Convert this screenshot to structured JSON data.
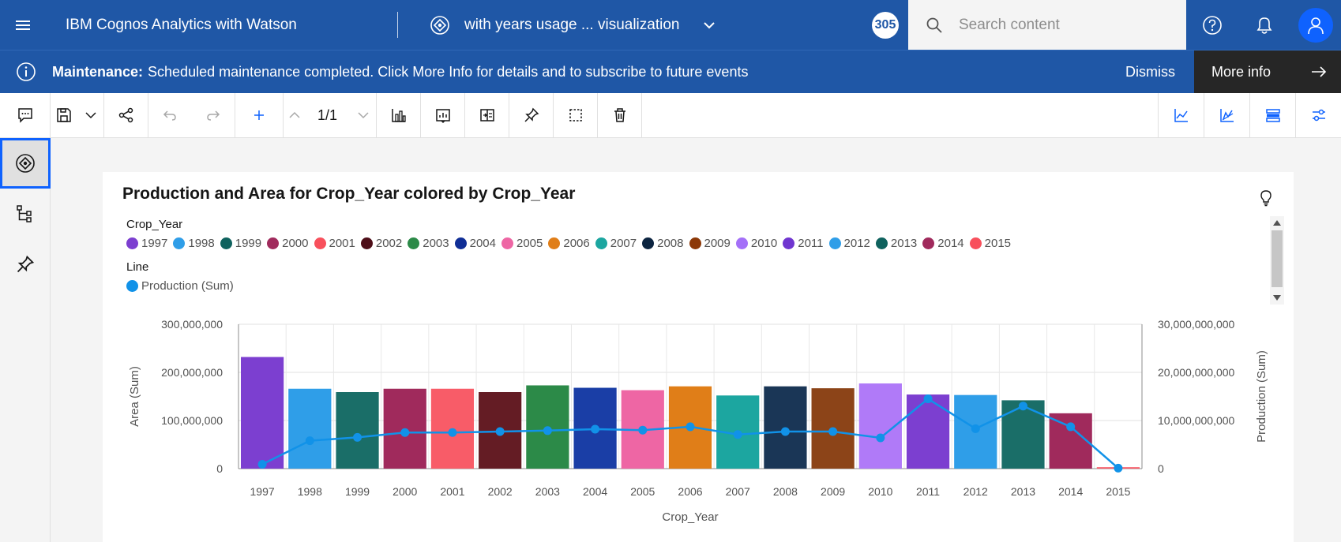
{
  "topbar": {
    "app_title": "IBM Cognos Analytics with Watson",
    "breadcrumb": "with years usage ... visualization",
    "badge_count": "305",
    "search_placeholder": "Search content"
  },
  "banner": {
    "label": "Maintenance:",
    "message": "Scheduled maintenance completed. Click More Info for details and to subscribe to future events",
    "dismiss": "Dismiss",
    "more_info": "More info"
  },
  "toolbar": {
    "page_indicator": "1/1"
  },
  "colors": {
    "ibm_blue": "#1f57a6",
    "line": "#1192e8"
  },
  "legend": {
    "color_title": "Crop_Year",
    "line_title": "Line",
    "line_item": "Production (Sum)"
  },
  "chart_data": {
    "type": "bar",
    "title": "Production and Area for Crop_Year colored by Crop_Year",
    "xlabel": "Crop_Year",
    "ylabel": "Area (Sum)",
    "y2label": "Production (Sum)",
    "ylim": [
      0,
      300000000
    ],
    "y2lim": [
      0,
      30000000000
    ],
    "yticks": [
      "0",
      "100,000,000",
      "200,000,000",
      "300,000,000"
    ],
    "y2ticks": [
      "0",
      "10,000,000,000",
      "20,000,000,000",
      "30,000,000,000"
    ],
    "categories": [
      "1997",
      "1998",
      "1999",
      "2000",
      "2001",
      "2002",
      "2003",
      "2004",
      "2005",
      "2006",
      "2007",
      "2008",
      "2009",
      "2010",
      "2011",
      "2012",
      "2013",
      "2014",
      "2015"
    ],
    "colors": [
      "#8a3ffc",
      "#33b1ff",
      "#007d79",
      "#ff7eb6",
      "#fa4d56",
      "#6f1626",
      "#198038",
      "#002d9c",
      "#ee5396",
      "#b28600",
      "#009d9a",
      "#012749",
      "#8a3800",
      "#a56eff",
      "#8a3ffc",
      "#33b1ff",
      "#007d79",
      "#ff7eb6",
      "#fa4d56"
    ],
    "bar_colors": [
      "#7c3fd0",
      "#2f9ee8",
      "#1a6e68",
      "#a02a5c",
      "#f85c68",
      "#641c24",
      "#2c8a48",
      "#1a3ea6",
      "#ee66a4",
      "#e07e18",
      "#1ca6a0",
      "#1a3656",
      "#8c4418",
      "#b07af8",
      "#7c3fd0",
      "#2f9ee8",
      "#1a6e68",
      "#a02a5c",
      "#f85c68"
    ],
    "legend_colors": [
      "#7c3fd0",
      "#2f9ee8",
      "#0f625e",
      "#a02a5c",
      "#f8505c",
      "#4e0e18",
      "#2c8a48",
      "#102e96",
      "#ee66a4",
      "#e07e18",
      "#1ca6a0",
      "#0c2440",
      "#8c3808",
      "#a470f8",
      "#7036d0",
      "#2f9ee8",
      "#0f625e",
      "#a02a5c",
      "#f8505c"
    ],
    "series": [
      {
        "name": "Area (Sum)",
        "values": [
          232000000,
          166000000,
          159000000,
          166000000,
          166000000,
          159000000,
          173000000,
          168000000,
          163000000,
          171000000,
          152000000,
          171000000,
          167000000,
          177000000,
          154000000,
          153000000,
          142000000,
          115000000,
          3000000
        ]
      },
      {
        "name": "Production (Sum)",
        "values": [
          900000000,
          5800000000,
          6500000000,
          7500000000,
          7500000000,
          7700000000,
          7900000000,
          8200000000,
          8000000000,
          8700000000,
          7100000000,
          7700000000,
          7700000000,
          6400000000,
          14500000000,
          8300000000,
          13000000000,
          8700000000,
          100000000
        ]
      }
    ]
  }
}
